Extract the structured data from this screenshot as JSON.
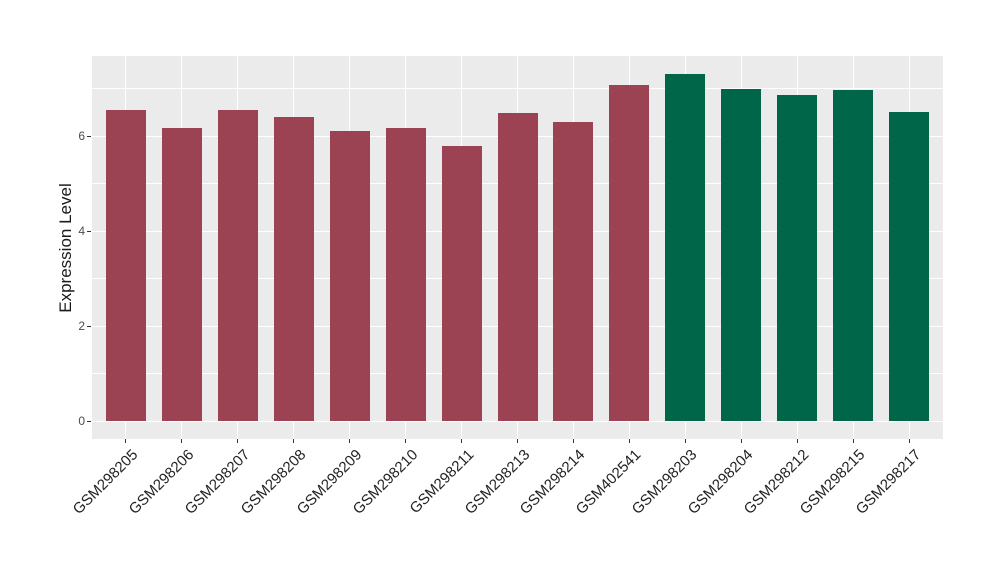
{
  "chart_data": {
    "type": "bar",
    "title": "",
    "xlabel": "",
    "ylabel": "Expression Level",
    "categories": [
      "GSM298205",
      "GSM298206",
      "GSM298207",
      "GSM298208",
      "GSM298209",
      "GSM298210",
      "GSM298211",
      "GSM298213",
      "GSM298214",
      "GSM402541",
      "GSM298203",
      "GSM298204",
      "GSM298212",
      "GSM298215",
      "GSM298217"
    ],
    "values": [
      6.56,
      6.17,
      6.56,
      6.4,
      6.12,
      6.17,
      5.8,
      6.48,
      6.31,
      7.08,
      7.31,
      6.99,
      6.87,
      6.97,
      6.51
    ],
    "bar_colors": [
      "#9B4353",
      "#9B4353",
      "#9B4353",
      "#9B4353",
      "#9B4353",
      "#9B4353",
      "#9B4353",
      "#9B4353",
      "#9B4353",
      "#9B4353",
      "#006649",
      "#006649",
      "#006649",
      "#006649",
      "#006649"
    ],
    "y_ticks": [
      0,
      2,
      4,
      6
    ],
    "y_tick_labels": [
      "0",
      "2",
      "4",
      "6"
    ],
    "y_minor_ticks": [
      1,
      3,
      5,
      7
    ],
    "ylim": [
      -0.37,
      7.69
    ],
    "x_tick_rotation_deg": 45,
    "grid": "on",
    "legend": "none",
    "colors": {
      "panel_background": "#EBEBEB",
      "gridline": "#FFFFFF",
      "bar_maroon": "#9B4353",
      "bar_green": "#006649",
      "axis_tick_text": "#4D4D4D",
      "x_tick_text": "#222222",
      "axis_title_text": "#1A1A1A",
      "tick_mark": "#333333",
      "figure_background": "#FFFFFF"
    }
  }
}
